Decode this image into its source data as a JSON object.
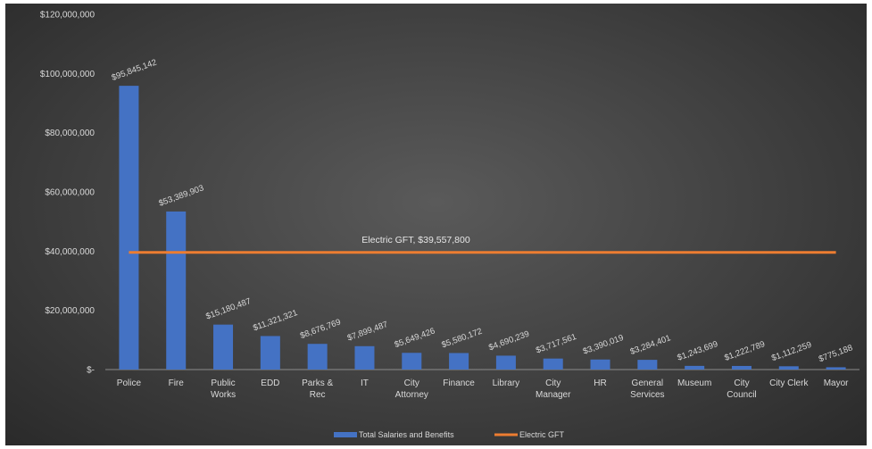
{
  "chart_data": {
    "type": "bar",
    "title": "",
    "xlabel": "",
    "ylabel": "",
    "ylim": [
      0,
      120000000
    ],
    "yticks": [
      0,
      20000000,
      40000000,
      60000000,
      80000000,
      100000000,
      120000000
    ],
    "ytick_labels": [
      "$-",
      "$20,000,000",
      "$40,000,000",
      "$60,000,000",
      "$80,000,000",
      "$100,000,000",
      "$120,000,000"
    ],
    "grid": false,
    "legend_position": "bottom",
    "categories": [
      [
        "Police"
      ],
      [
        "Fire"
      ],
      [
        "Public",
        "Works"
      ],
      [
        "EDD"
      ],
      [
        "Parks &",
        "Rec"
      ],
      [
        "IT"
      ],
      [
        "City",
        "Attorney"
      ],
      [
        "Finance"
      ],
      [
        "Library"
      ],
      [
        "City",
        "Manager"
      ],
      [
        "HR"
      ],
      [
        "General",
        "Services"
      ],
      [
        "Museum"
      ],
      [
        "City",
        "Council"
      ],
      [
        "City Clerk"
      ],
      [
        "Mayor"
      ]
    ],
    "series": [
      {
        "name": "Total Salaries and Benefits",
        "type": "bar",
        "color": "#4472c4",
        "values": [
          95845142,
          53389903,
          15180487,
          11321321,
          8676769,
          7899487,
          5649426,
          5580172,
          4690239,
          3717561,
          3390019,
          3284401,
          1243699,
          1222789,
          1112259,
          775188
        ],
        "labels": [
          "$95,845,142",
          "$53,389,903",
          "$15,180,487",
          "$11,321,321",
          "$8,676,769",
          "$7,899,487",
          "$5,649,426",
          "$5,580,172",
          "$4,690,239",
          "$3,717,561",
          "$3,390,019",
          "$3,284,401",
          "$1,243,699",
          "$1,222,789",
          "$1,112,259",
          "$775,188"
        ]
      },
      {
        "name": "Electric GFT",
        "type": "line",
        "color": "#ed7d31",
        "value": 39557800,
        "label": "Electric GFT,  $39,557,800"
      }
    ]
  }
}
